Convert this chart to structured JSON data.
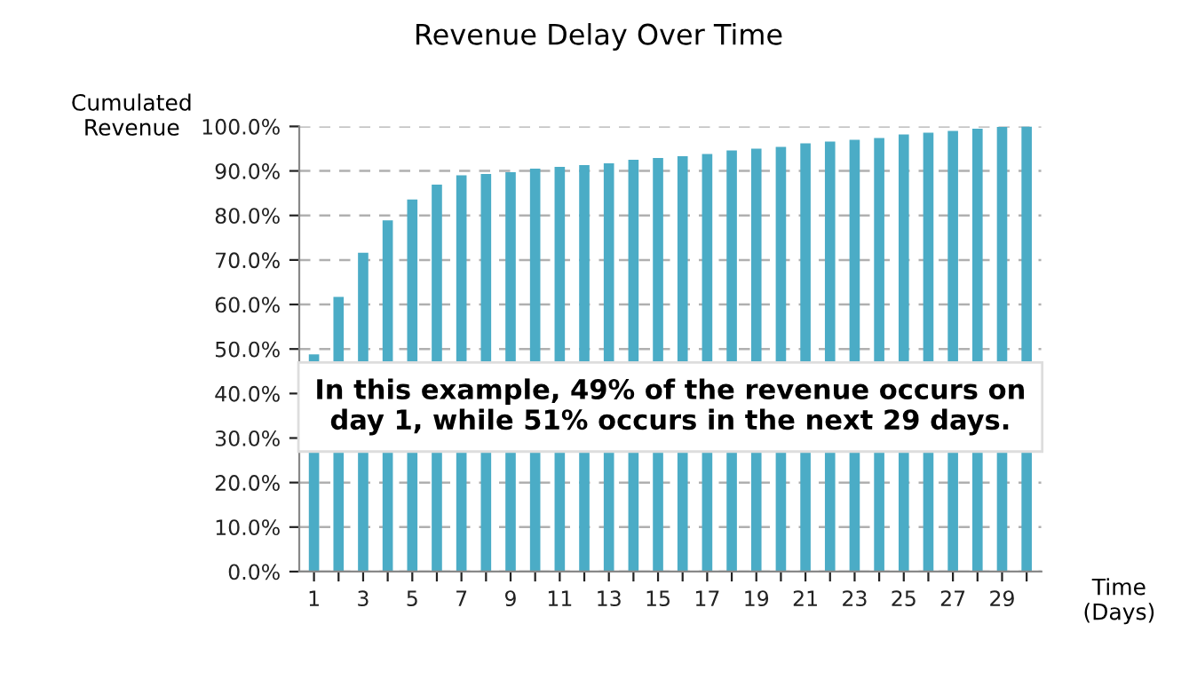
{
  "chart_data": {
    "type": "bar",
    "title": "Revenue Delay Over Time",
    "xlabel": "Time\n(Days)",
    "ylabel": "Cumulated\nRevenue",
    "categories": [
      "1",
      null,
      "3",
      null,
      "5",
      null,
      "7",
      null,
      "9",
      null,
      "11",
      null,
      "13",
      null,
      "15",
      null,
      "17",
      null,
      "19",
      null,
      "21",
      null,
      "23",
      null,
      "25",
      null,
      "27",
      null,
      "29",
      null
    ],
    "values": [
      48.8,
      61.7,
      71.6,
      78.9,
      83.6,
      86.9,
      89.0,
      89.3,
      89.7,
      90.5,
      90.9,
      91.3,
      91.7,
      92.5,
      92.9,
      93.3,
      93.8,
      94.6,
      95.0,
      95.4,
      96.2,
      96.6,
      97.0,
      97.4,
      98.2,
      98.6,
      99.0,
      99.5,
      99.9,
      100.0
    ],
    "color": "#4bacc6",
    "ylim": [
      0,
      100
    ],
    "yticks": [
      {
        "value": 0,
        "label": "0.0%"
      },
      {
        "value": 10,
        "label": "10.0%"
      },
      {
        "value": 20,
        "label": "20.0%"
      },
      {
        "value": 30,
        "label": "30.0%"
      },
      {
        "value": 40,
        "label": "40.0%"
      },
      {
        "value": 50,
        "label": "50.0%"
      },
      {
        "value": 60,
        "label": "60.0%"
      },
      {
        "value": 70,
        "label": "70.0%"
      },
      {
        "value": 80,
        "label": "80.0%"
      },
      {
        "value": 90,
        "label": "90.0%"
      },
      {
        "value": 100,
        "label": "100.0%"
      }
    ],
    "grid": "y",
    "annotations": [
      "In this example, 49% of the revenue occurs on\nday 1, while 51% occurs in the next 29 days."
    ]
  }
}
